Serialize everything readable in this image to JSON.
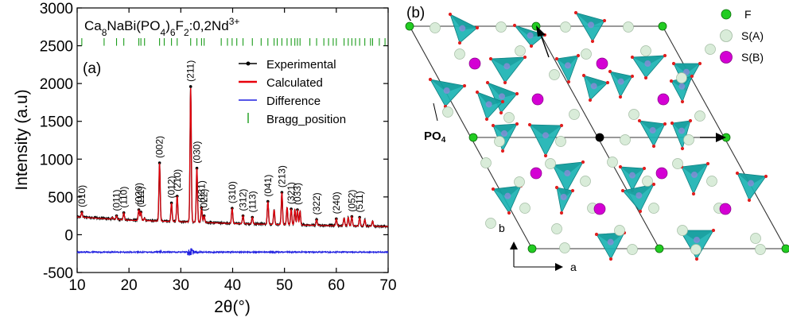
{
  "chart_data": [
    {
      "type": "line",
      "panel_label": "(a)",
      "title_parts": {
        "a": "Ca",
        "b": "8",
        "c": "NaBi(PO",
        "d": "4",
        "e": ")",
        "f": "6",
        "g": "F",
        "h": "2",
        "i": ":0,2Nd",
        "j": "3+"
      },
      "xlabel": "2θ(°)",
      "ylabel": "Intensity (a.u)",
      "xlim": [
        10,
        70
      ],
      "ylim": [
        -500,
        3000
      ],
      "xticks": [
        10,
        20,
        30,
        40,
        50,
        60,
        70
      ],
      "yticks": [
        -500,
        0,
        500,
        1000,
        1500,
        2000,
        2500,
        3000
      ],
      "legend": {
        "placement": "top-right",
        "entries": [
          {
            "name": "Experimental",
            "color": "#000000"
          },
          {
            "name": "Calculated",
            "color": "#e8000b"
          },
          {
            "name": "Difference",
            "color": "#1f1fe0"
          },
          {
            "name": "Bragg_position",
            "color": "#1a9c1a"
          }
        ]
      },
      "series": [
        {
          "name": "Experimental",
          "kind": "profile",
          "baseline": [
            [
              10,
              240
            ],
            [
              20,
              195
            ],
            [
              30,
              175
            ],
            [
              40,
              150
            ],
            [
              50,
              135
            ],
            [
              60,
              120
            ],
            [
              70,
              110
            ]
          ],
          "color": "#000000"
        },
        {
          "name": "Calculated",
          "kind": "profile",
          "baseline": [
            [
              10,
              235
            ],
            [
              20,
              192
            ],
            [
              30,
              172
            ],
            [
              40,
              148
            ],
            [
              50,
              133
            ],
            [
              60,
              118
            ],
            [
              70,
              108
            ]
          ],
          "color": "#e8000b"
        },
        {
          "name": "Difference",
          "kind": "residual",
          "offset": -230,
          "color": "#1f1fe0"
        },
        {
          "name": "Bragg_position",
          "kind": "ticks",
          "y_range": [
            2500,
            2600
          ],
          "color": "#1a9c1a"
        }
      ],
      "peaks": [
        {
          "hkl": "(010)",
          "x": 10.9,
          "y": 300
        },
        {
          "hkl": "(011)",
          "x": 17.6,
          "y": 250
        },
        {
          "hkl": "(110)",
          "x": 19.0,
          "y": 290
        },
        {
          "hkl": "(020)",
          "x": 21.9,
          "y": 330
        },
        {
          "hkl": "(111)",
          "x": 22.3,
          "y": 300
        },
        {
          "hkl": "(002)",
          "x": 25.9,
          "y": 950
        },
        {
          "hkl": "(012)",
          "x": 28.2,
          "y": 420
        },
        {
          "hkl": "(210)",
          "x": 29.3,
          "y": 510
        },
        {
          "hkl": "(211)",
          "x": 31.9,
          "y": 1960
        },
        {
          "hkl": "(030)",
          "x": 33.1,
          "y": 880
        },
        {
          "hkl": "(031)",
          "x": 34.0,
          "y": 360
        },
        {
          "hkl": "(022)",
          "x": 34.5,
          "y": 250
        },
        {
          "hkl": "(310)",
          "x": 39.9,
          "y": 350
        },
        {
          "hkl": "(312)",
          "x": 42.0,
          "y": 250
        },
        {
          "hkl": "(113)",
          "x": 43.8,
          "y": 230
        },
        {
          "hkl": "(041)",
          "x": 46.8,
          "y": 440
        },
        {
          "hkl": "(213)",
          "x": 49.5,
          "y": 560
        },
        {
          "hkl": "(321)",
          "x": 51.3,
          "y": 340
        },
        {
          "hkl": "(033)",
          "x": 52.5,
          "y": 330
        },
        {
          "hkl": "(322)",
          "x": 56.2,
          "y": 200
        },
        {
          "hkl": "(240)",
          "x": 60.0,
          "y": 210
        },
        {
          "hkl": "(052)",
          "x": 63.0,
          "y": 240
        },
        {
          "hkl": "(511)",
          "x": 64.5,
          "y": 230
        }
      ],
      "extra_peaks": [
        [
          16.8,
          230
        ],
        [
          23.0,
          220
        ],
        [
          48.0,
          330
        ],
        [
          50.5,
          360
        ],
        [
          52.0,
          330
        ],
        [
          53.0,
          310
        ],
        [
          61.5,
          220
        ],
        [
          62.3,
          230
        ],
        [
          65.5,
          200
        ],
        [
          67.0,
          180
        ]
      ],
      "bragg_positions": [
        10.9,
        15.2,
        17.6,
        19.0,
        21.9,
        22.3,
        23.0,
        25.9,
        26.8,
        28.2,
        29.3,
        31.9,
        33.1,
        34.0,
        34.5,
        37.8,
        39.0,
        39.9,
        40.8,
        42.0,
        43.8,
        45.5,
        46.8,
        48.0,
        48.6,
        49.5,
        50.5,
        51.3,
        52.0,
        52.5,
        53.0,
        54.9,
        56.2,
        57.6,
        58.5,
        59.4,
        60.0,
        61.5,
        62.3,
        63.0,
        63.7,
        64.5,
        65.5,
        66.6,
        67.0,
        68.3,
        69.4
      ]
    },
    {
      "type": "diagram",
      "panel_label": "(b)",
      "legend_labels": [
        "F",
        "S(A)",
        "S(B)"
      ],
      "callouts": {
        "group_a": "PO",
        "group_b": "4"
      },
      "axis_labels": [
        "a",
        "b"
      ],
      "colors": {
        "F": "#22cc22",
        "S(A)": "#d9ecd9",
        "S(B)": "#d400d4",
        "PO4": "#1bb3b3",
        "O": "#e02020",
        "cell": "#333333"
      }
    }
  ]
}
